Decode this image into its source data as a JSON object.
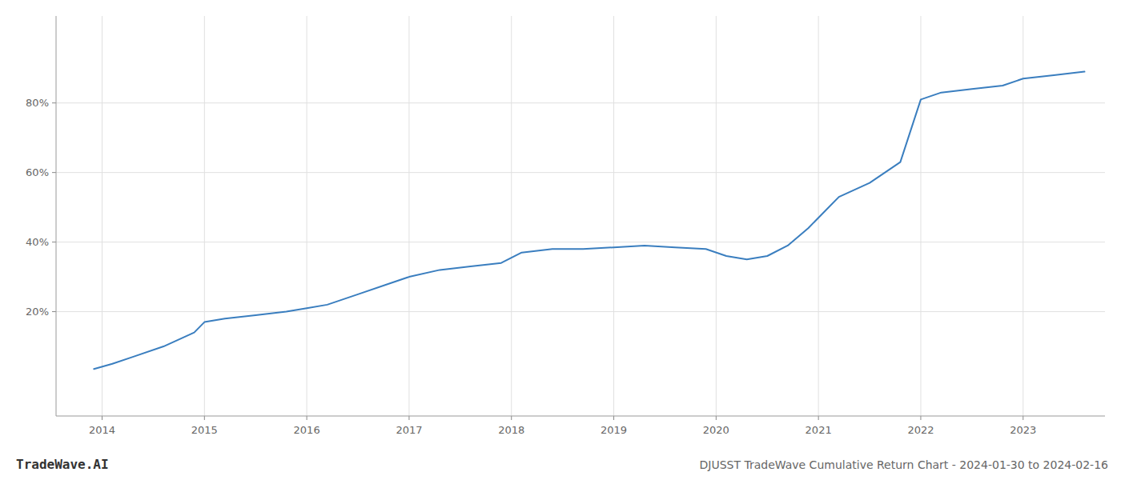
{
  "chart_data": {
    "type": "line",
    "title": "DJUSST TradeWave Cumulative Return Chart - 2024-01-30 to 2024-02-16",
    "annotations": [
      "TradeWave.AI"
    ],
    "x": [
      2013.92,
      2014.1,
      2014.3,
      2014.6,
      2014.9,
      2015.0,
      2015.2,
      2015.5,
      2015.8,
      2016.0,
      2016.2,
      2016.5,
      2016.8,
      2017.0,
      2017.3,
      2017.6,
      2017.9,
      2018.1,
      2018.4,
      2018.7,
      2019.0,
      2019.3,
      2019.6,
      2019.9,
      2020.1,
      2020.3,
      2020.5,
      2020.7,
      2020.9,
      2021.2,
      2021.5,
      2021.8,
      2022.0,
      2022.2,
      2022.5,
      2022.8,
      2023.0,
      2023.3,
      2023.6
    ],
    "values": [
      3.5,
      5,
      7,
      10,
      14,
      17,
      18,
      19,
      20,
      21,
      22,
      25,
      28,
      30,
      32,
      33,
      34,
      37,
      38,
      38,
      38.5,
      39,
      38.5,
      38,
      36,
      35,
      36,
      39,
      44,
      53,
      57,
      63,
      81,
      83,
      84,
      85,
      87,
      88,
      89
    ],
    "color": "#3a7ebf",
    "xlim": [
      2013.55,
      2023.8
    ],
    "ylim": [
      -10,
      105
    ],
    "xticks": [
      2014,
      2015,
      2016,
      2017,
      2018,
      2019,
      2020,
      2021,
      2022,
      2023
    ],
    "yticks": [
      {
        "value": 20,
        "label": "20%"
      },
      {
        "value": 40,
        "label": "40%"
      },
      {
        "value": 60,
        "label": "60%"
      },
      {
        "value": 80,
        "label": "80%"
      }
    ],
    "grid": true
  }
}
